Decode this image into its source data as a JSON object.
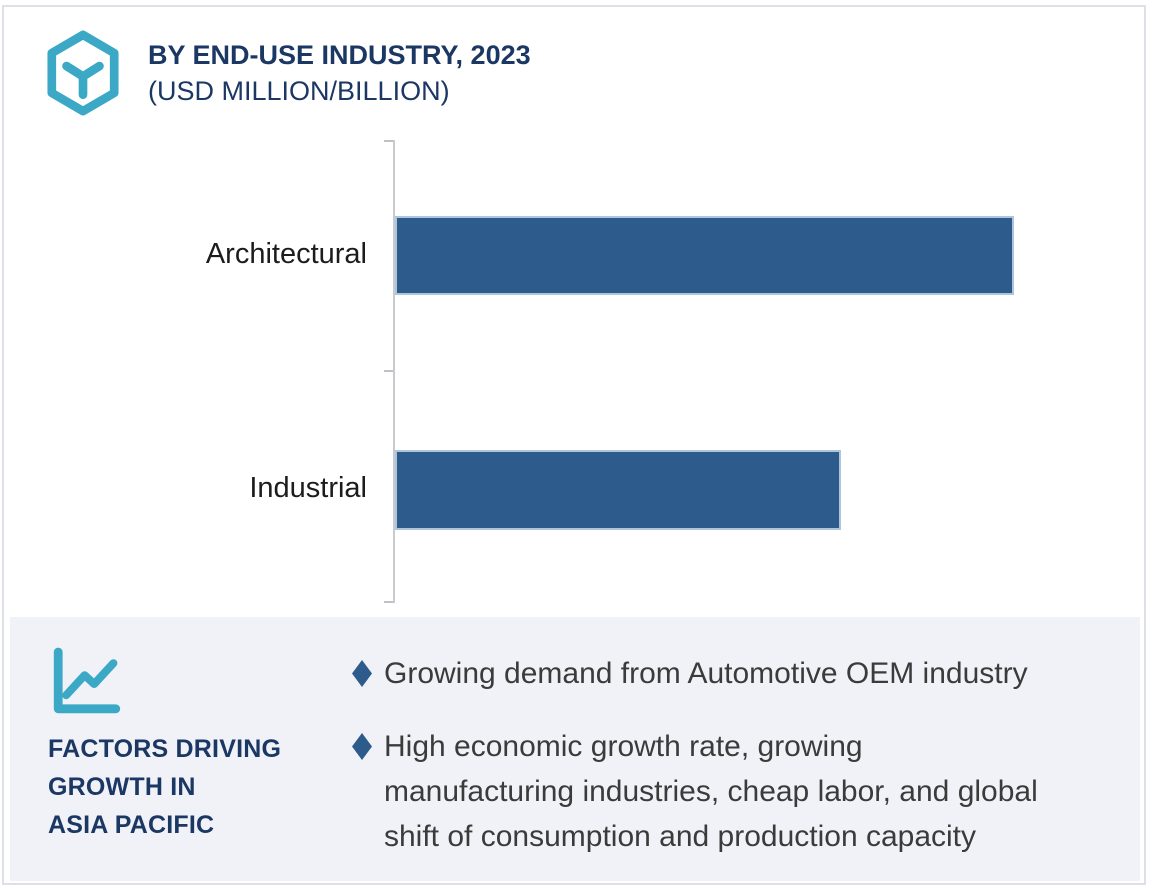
{
  "header": {
    "title": "BY END-USE INDUSTRY, 2023",
    "subtitle": "(USD MILLION/BILLION)"
  },
  "chart_data": {
    "type": "bar",
    "orientation": "horizontal",
    "title": "BY END-USE INDUSTRY, 2023 (USD MILLION/BILLION)",
    "categories": [
      "Architectural",
      "Industrial"
    ],
    "values": [
      100,
      72
    ],
    "values_note": "axis has no numeric labels; values are relative bar lengths with Architectural = 100",
    "value_labels_shown": false,
    "axis_values_shown": false,
    "grid": false,
    "legend": "none",
    "bar_color": "#2d5c8c",
    "bar_border_color": "#aec6dc",
    "axis_color": "#c9cacd"
  },
  "factors_panel": {
    "heading": "FACTORS DRIVING\nGROWTH IN\nASIA PACIFIC",
    "bullets": [
      "Growing demand from Automotive OEM industry",
      "High economic growth rate, growing\nmanufacturing industries, cheap labor, and global\nshift of consumption and production capacity"
    ]
  },
  "icons": {
    "logo": "hexagon-cube-icon",
    "panel": "line-chart-icon",
    "bullet": "diamond-bullet-icon"
  },
  "colors": {
    "accent_teal": "#3ba8c6",
    "navy_text": "#1b3764",
    "bar_fill": "#2d5c8c",
    "bar_border": "#aec6dc",
    "panel_background": "#f1f2f7",
    "body_text": "#3b3b3b",
    "card_border": "#dde0e6"
  }
}
